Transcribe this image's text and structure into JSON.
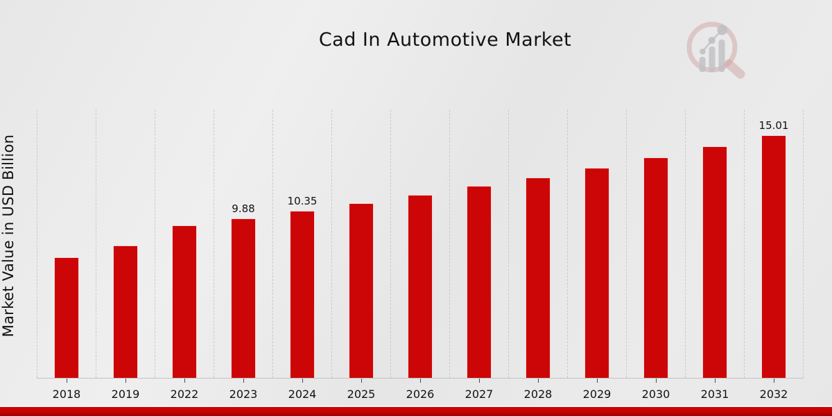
{
  "logo": {
    "icon": "magnifier-growth-chart-watermark-icon",
    "ring_color": "#d2a3a3",
    "bars_color": "#bfbfc3"
  },
  "footer": {
    "accent_color": "#c20404"
  },
  "chart_data": {
    "type": "bar",
    "title": "Cad In Automotive Market",
    "xlabel": "",
    "ylabel": "Market Value in USD Billion",
    "categories": [
      "2018",
      "2019",
      "2022",
      "2023",
      "2024",
      "2025",
      "2026",
      "2027",
      "2028",
      "2029",
      "2030",
      "2031",
      "2032"
    ],
    "values": [
      7.45,
      8.18,
      9.42,
      9.88,
      10.35,
      10.79,
      11.34,
      11.9,
      12.41,
      13.01,
      13.65,
      14.34,
      15.01
    ],
    "bar_labels": [
      null,
      null,
      null,
      "9.88",
      "10.35",
      null,
      null,
      null,
      null,
      null,
      null,
      null,
      "15.01"
    ],
    "bar_color": "#cc0606",
    "ylim": [
      0,
      16.6
    ],
    "grid": "vertical-dashed",
    "legend": "none",
    "yticks_visible": false
  }
}
